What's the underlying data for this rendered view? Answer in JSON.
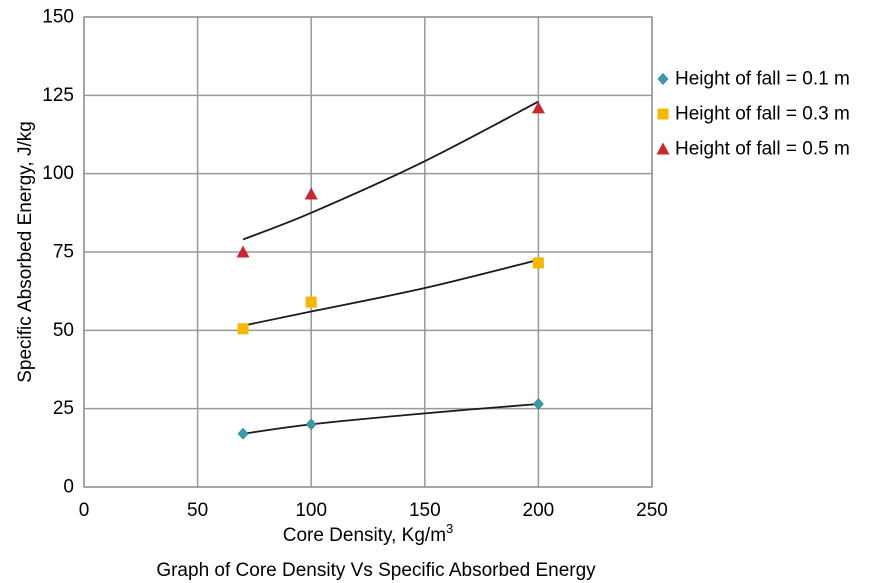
{
  "chart_data": {
    "type": "scatter",
    "title": "",
    "caption": "Graph of Core Density Vs Specific Absorbed Energy",
    "xlabel_main": "Core Density, Kg/m",
    "xlabel_sup": "3",
    "ylabel": "Specific Absorbed Energy, J/kg",
    "xlim": [
      0,
      250
    ],
    "ylim": [
      0,
      150
    ],
    "xticks": [
      0,
      50,
      100,
      150,
      200,
      250
    ],
    "yticks": [
      0,
      25,
      50,
      75,
      100,
      125,
      150
    ],
    "grid": true,
    "legend_position": "right",
    "series": [
      {
        "name": "Height of fall = 0.1 m",
        "marker": "diamond",
        "color": "#3a9aa8",
        "points": [
          [
            70,
            17
          ],
          [
            100,
            20
          ],
          [
            200,
            26.5
          ]
        ],
        "trendline": [
          [
            70,
            17
          ],
          [
            100,
            20
          ],
          [
            150,
            23.5
          ],
          [
            200,
            26.5
          ]
        ]
      },
      {
        "name": "Height of fall = 0.3 m",
        "marker": "square",
        "color": "#f5b800",
        "points": [
          [
            70,
            50.5
          ],
          [
            100,
            59
          ],
          [
            200,
            71.5
          ]
        ],
        "trendline": [
          [
            70,
            51.5
          ],
          [
            100,
            56
          ],
          [
            150,
            63.5
          ],
          [
            200,
            72.5
          ]
        ]
      },
      {
        "name": "Height of fall = 0.5 m",
        "marker": "triangle",
        "color": "#c8282d",
        "points": [
          [
            70,
            75
          ],
          [
            100,
            93.5
          ],
          [
            200,
            121
          ]
        ],
        "trendline": [
          [
            70,
            79
          ],
          [
            100,
            87.5
          ],
          [
            150,
            104
          ],
          [
            200,
            123
          ]
        ]
      }
    ]
  }
}
